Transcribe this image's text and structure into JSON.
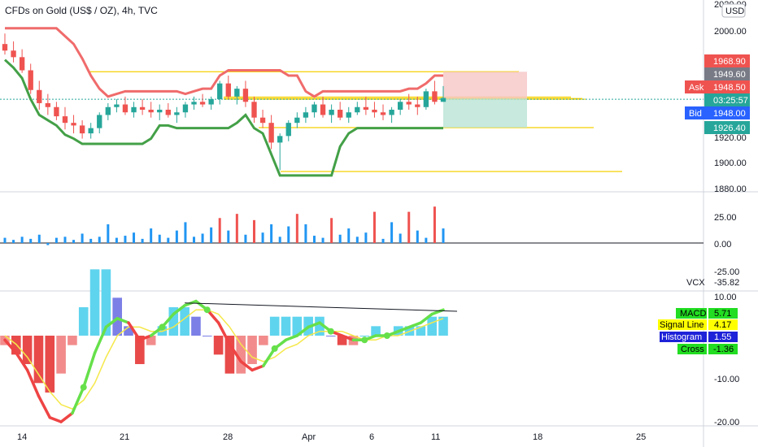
{
  "header": {
    "title": "CFDs on Gold (US$ / OZ), 4h, TVC",
    "currency": "USD"
  },
  "colors": {
    "up": "#26a69a",
    "down": "#ef5350",
    "channel_high": "#f06b6b",
    "channel_low": "#43a047",
    "level_line": "#f5d000",
    "ask": "#ef5350",
    "bid": "#2962ff",
    "pane_bg": "#ffffff",
    "hist_pos_strong": "#5fd4ee",
    "hist_pos_weak": "#7b7fe6",
    "hist_neg_strong": "#e84a4a",
    "hist_neg_weak": "#f28c8c",
    "macd_up": "#66e04a",
    "macd_down": "#ef4444",
    "signal": "#f5e84a"
  },
  "price_axis": {
    "ticks": [
      "2020.00",
      "2000.00",
      "1920.00",
      "1900.00",
      "1880.00"
    ],
    "labels": [
      {
        "label": "",
        "value": "1968.90",
        "color": "#ef5350"
      },
      {
        "label": "",
        "value": "1949.60",
        "color": "#787b86"
      },
      {
        "label": "Ask",
        "value": "1948.50",
        "color": "#ef5350"
      },
      {
        "label": "",
        "value": "03:25:57",
        "color": "#26a69a"
      },
      {
        "label": "Bid",
        "value": "1948.00",
        "color": "#2962ff"
      },
      {
        "label": "",
        "value": "1926.40",
        "color": "#26a69a"
      }
    ]
  },
  "vcx_axis": {
    "ticks": [
      "25.00",
      "0.00",
      "-25.00"
    ],
    "name": "VCX",
    "value": "-35.82"
  },
  "macd_axis": {
    "ticks": [
      "10.00",
      "-10.00",
      "-20.00"
    ]
  },
  "macd_legend": [
    {
      "name": "MACD",
      "value": "5.71",
      "bg": "#22dd22",
      "fg": "#000000"
    },
    {
      "name": "Signal Line",
      "value": "4.17",
      "bg": "#ffff00",
      "fg": "#000000"
    },
    {
      "name": "Histogram",
      "value": "1.55",
      "bg": "#1e22d8",
      "fg": "#ffffff"
    },
    {
      "name": "Cross",
      "value": "-1.36",
      "bg": "#22dd22",
      "fg": "#000000"
    }
  ],
  "time_axis": [
    "14",
    "21",
    "28",
    "Apr",
    "6",
    "11",
    "18",
    "25"
  ],
  "chart_data": {
    "type": "candlestick",
    "title": "CFDs on Gold (US$ / OZ), 4h, TVC",
    "ylim": [
      1870,
      2020
    ],
    "ohlc": [
      [
        1990,
        1998,
        1982,
        1985
      ],
      [
        1985,
        1992,
        1976,
        1980
      ],
      [
        1980,
        1986,
        1968,
        1970
      ],
      [
        1970,
        1975,
        1952,
        1955
      ],
      [
        1955,
        1962,
        1940,
        1945
      ],
      [
        1945,
        1952,
        1936,
        1942
      ],
      [
        1942,
        1946,
        1932,
        1935
      ],
      [
        1935,
        1942,
        1925,
        1930
      ],
      [
        1930,
        1936,
        1922,
        1928
      ],
      [
        1928,
        1932,
        1918,
        1922
      ],
      [
        1922,
        1930,
        1918,
        1926
      ],
      [
        1926,
        1938,
        1922,
        1936
      ],
      [
        1936,
        1945,
        1932,
        1942
      ],
      [
        1942,
        1948,
        1938,
        1944
      ],
      [
        1944,
        1950,
        1936,
        1938
      ],
      [
        1938,
        1946,
        1934,
        1942
      ],
      [
        1942,
        1948,
        1936,
        1940
      ],
      [
        1940,
        1946,
        1934,
        1938
      ],
      [
        1938,
        1944,
        1932,
        1940
      ],
      [
        1940,
        1945,
        1934,
        1936
      ],
      [
        1936,
        1942,
        1930,
        1938
      ],
      [
        1938,
        1946,
        1934,
        1944
      ],
      [
        1944,
        1950,
        1940,
        1946
      ],
      [
        1946,
        1952,
        1942,
        1944
      ],
      [
        1944,
        1950,
        1940,
        1948
      ],
      [
        1948,
        1962,
        1944,
        1960
      ],
      [
        1960,
        1966,
        1948,
        1950
      ],
      [
        1950,
        1958,
        1944,
        1956
      ],
      [
        1956,
        1962,
        1942,
        1946
      ],
      [
        1946,
        1950,
        1930,
        1934
      ],
      [
        1934,
        1940,
        1926,
        1930
      ],
      [
        1930,
        1936,
        1910,
        1915
      ],
      [
        1915,
        1922,
        1894,
        1920
      ],
      [
        1920,
        1932,
        1916,
        1930
      ],
      [
        1930,
        1938,
        1926,
        1934
      ],
      [
        1934,
        1942,
        1930,
        1938
      ],
      [
        1938,
        1946,
        1934,
        1944
      ],
      [
        1944,
        1950,
        1934,
        1936
      ],
      [
        1936,
        1944,
        1930,
        1940
      ],
      [
        1940,
        1946,
        1932,
        1934
      ],
      [
        1934,
        1942,
        1930,
        1938
      ],
      [
        1938,
        1946,
        1936,
        1942
      ],
      [
        1942,
        1950,
        1936,
        1940
      ],
      [
        1940,
        1946,
        1934,
        1938
      ],
      [
        1938,
        1944,
        1932,
        1936
      ],
      [
        1936,
        1942,
        1930,
        1940
      ],
      [
        1940,
        1948,
        1936,
        1946
      ],
      [
        1946,
        1952,
        1940,
        1944
      ],
      [
        1944,
        1950,
        1936,
        1942
      ],
      [
        1942,
        1956,
        1940,
        1954
      ],
      [
        1954,
        1962,
        1944,
        1946
      ],
      [
        1946,
        1958,
        1946,
        1949
      ]
    ],
    "levels": [
      1968.9,
      1949.6,
      1948.5,
      1948.0,
      1926.4,
      1893.0
    ],
    "volume_vcx": [
      5,
      3,
      6,
      4,
      8,
      -2,
      5,
      6,
      3,
      9,
      4,
      6,
      18,
      5,
      7,
      10,
      4,
      14,
      8,
      5,
      12,
      20,
      6,
      9,
      15,
      24,
      12,
      28,
      8,
      22,
      10,
      18,
      6,
      16,
      28,
      18,
      7,
      5,
      24,
      8,
      14,
      6,
      10,
      30,
      4,
      20,
      9,
      30,
      12,
      5,
      35,
      14
    ],
    "macd": [
      -1,
      -4,
      -8,
      -14,
      -19,
      -20,
      -18,
      -12,
      -4,
      2,
      4,
      3,
      -1,
      0,
      2,
      5,
      7,
      8,
      6,
      3,
      -2,
      -6,
      -8,
      -7,
      -3,
      -1,
      0,
      2,
      3,
      1,
      0,
      -1,
      -1,
      0,
      0,
      1,
      2,
      3,
      5,
      6
    ],
    "signal": [
      0,
      -2,
      -5,
      -9,
      -13,
      -16,
      -17,
      -15,
      -11,
      -5,
      0,
      2,
      2,
      1,
      1,
      2,
      4,
      6,
      6,
      5,
      2,
      -2,
      -5,
      -6,
      -5,
      -3,
      -2,
      0,
      1,
      1,
      1,
      0,
      -1,
      -1,
      0,
      0,
      1,
      2,
      3,
      4
    ]
  }
}
